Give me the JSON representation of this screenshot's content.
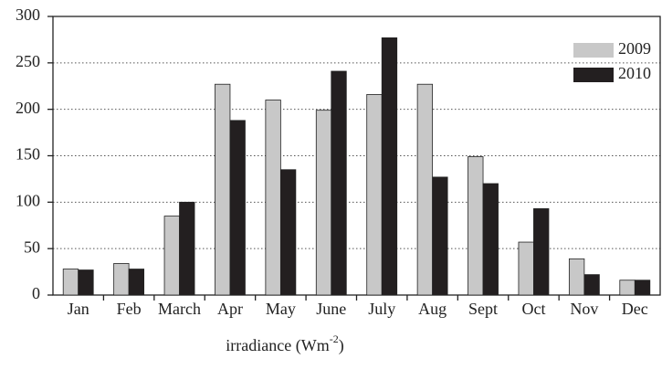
{
  "chart_data": {
    "type": "bar",
    "x_label": [
      "irradiance (Wm",
      "-2",
      ")"
    ],
    "categories": [
      "Jan",
      "Feb",
      "March",
      "Apr",
      "May",
      "June",
      "July",
      "Aug",
      "Sept",
      "Oct",
      "Nov",
      "Dec"
    ],
    "series": [
      {
        "name": "2009",
        "color": "#c8c8c8",
        "values": [
          28,
          34,
          85,
          227,
          210,
          199,
          216,
          227,
          149,
          57,
          39,
          16
        ]
      },
      {
        "name": "2010",
        "color": "#231f20",
        "values": [
          27,
          28,
          100,
          188,
          135,
          241,
          277,
          127,
          120,
          93,
          22,
          16
        ]
      }
    ],
    "ylim": [
      0,
      300
    ],
    "yticks": [
      0,
      50,
      100,
      150,
      200,
      250,
      300
    ],
    "grid": true,
    "legend": "upper right"
  }
}
